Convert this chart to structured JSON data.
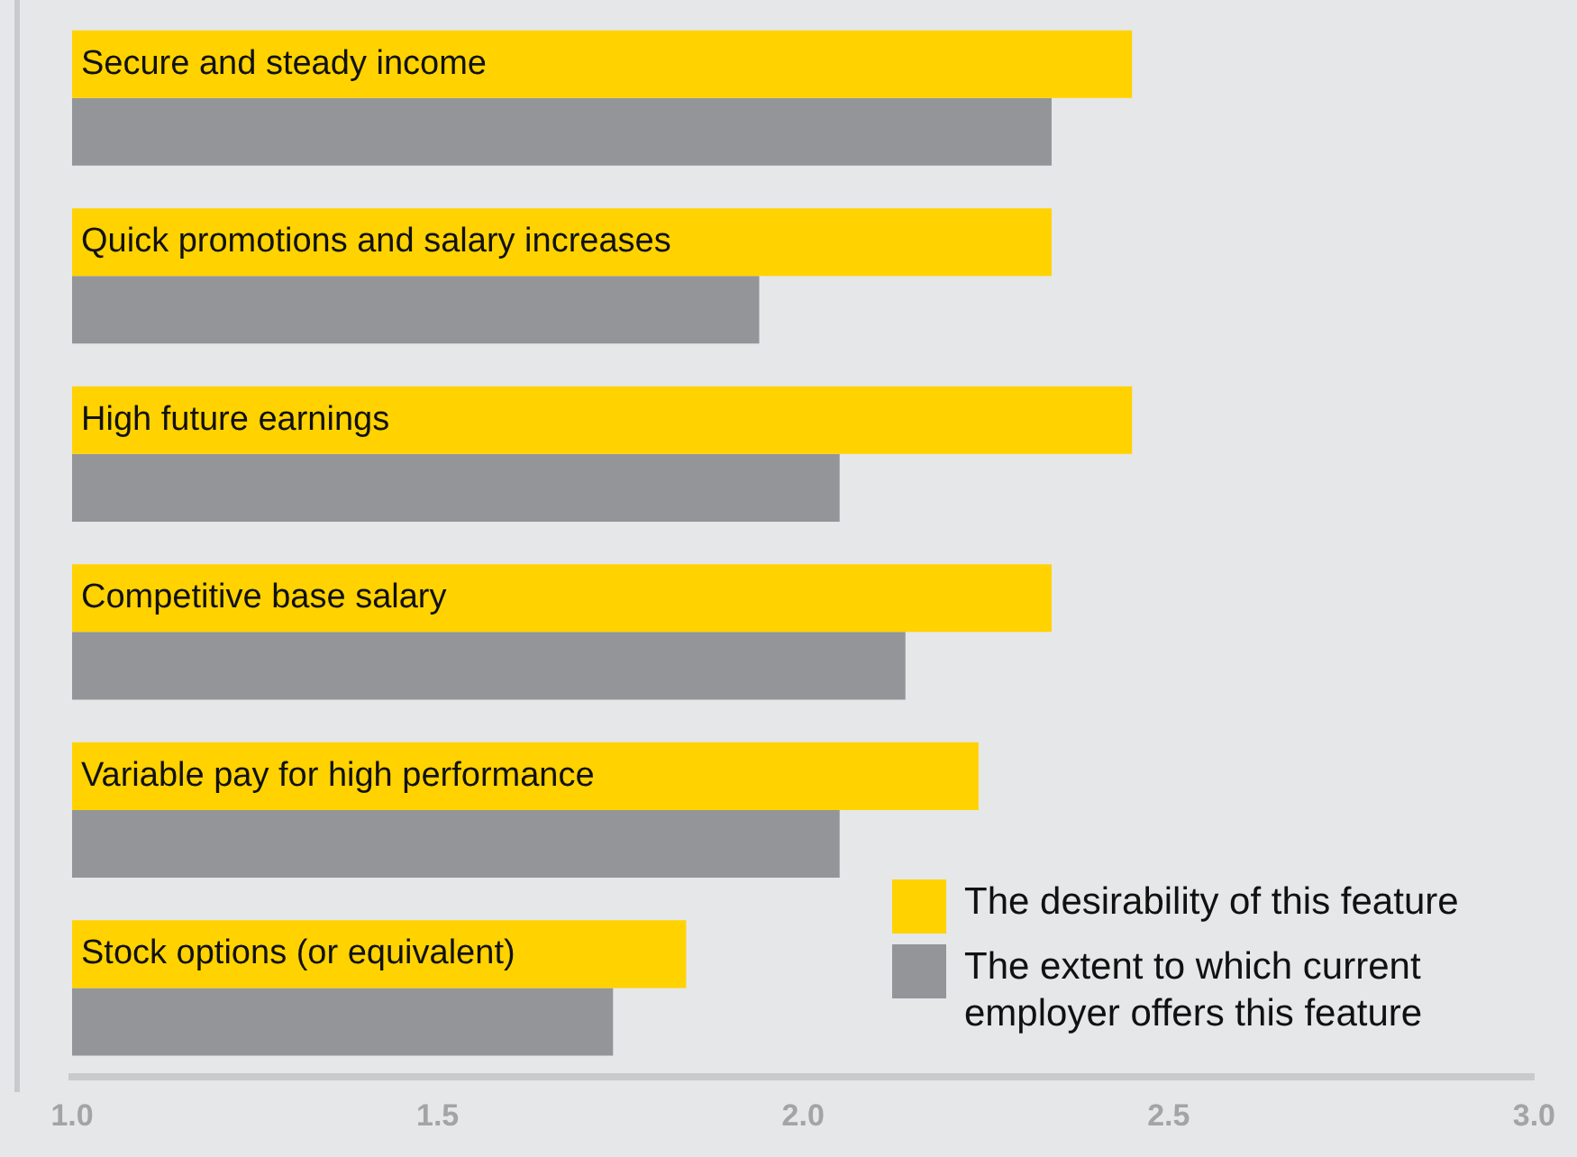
{
  "chart_data": {
    "type": "bar",
    "orientation": "horizontal",
    "categories": [
      "Secure and steady income",
      "Quick promotions and salary increases",
      "High future earnings",
      "Competitive base salary",
      "Variable pay for high performance",
      "Stock options (or equivalent)"
    ],
    "series": [
      {
        "name": "The desirability of this feature",
        "color": "#ffd200",
        "values": [
          2.45,
          2.34,
          2.45,
          2.34,
          2.24,
          1.84
        ]
      },
      {
        "name": "The extent to which current employer offers this feature",
        "color": "#939598",
        "values": [
          2.34,
          1.94,
          2.05,
          2.14,
          2.05,
          1.74
        ]
      }
    ],
    "xlim": [
      1,
      3
    ],
    "xticks": [
      {
        "value": 1,
        "label": "1.0"
      },
      {
        "value": 1.5,
        "label": "1.5"
      },
      {
        "value": 2,
        "label": "2.0"
      },
      {
        "value": 2.5,
        "label": "2.5"
      },
      {
        "value": 3,
        "label": "3.0"
      }
    ],
    "grid": false,
    "legend": "bottom right"
  }
}
